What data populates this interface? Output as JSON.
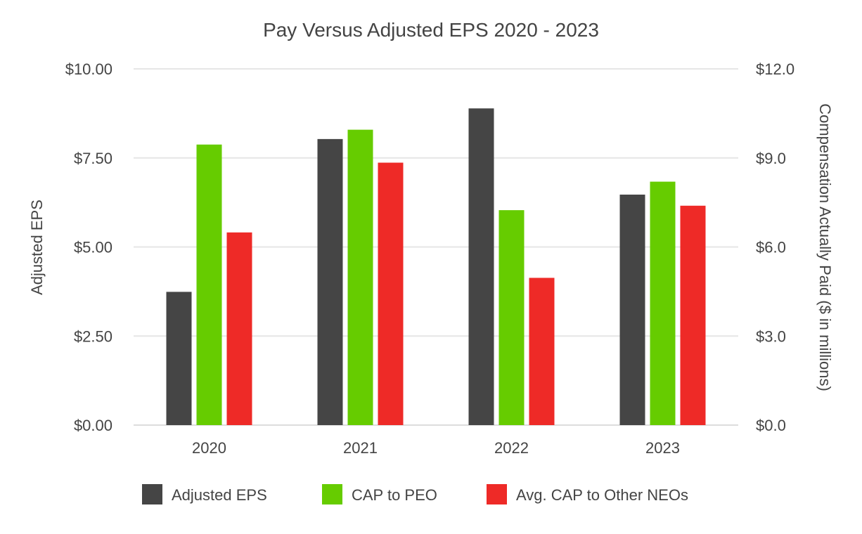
{
  "chart_data": {
    "type": "bar",
    "title": "Pay Versus Adjusted EPS 2020 - 2023",
    "categories": [
      "2020",
      "2021",
      "2022",
      "2023"
    ],
    "ylabel": "Adjusted EPS",
    "y2label": "Compensation Actually Paid ($ in millions)",
    "ylim": [
      0,
      10
    ],
    "y2lim": [
      0,
      12
    ],
    "yticks": [
      "$0.00",
      "$2.50",
      "$5.00",
      "$7.50",
      "$10.00"
    ],
    "y2ticks": [
      "$0.0",
      "$3.0",
      "$6.0",
      "$9.0",
      "$12.0"
    ],
    "legend_position": "bottom",
    "series": [
      {
        "name": "Adjusted EPS",
        "axis": "left",
        "color": "#454545",
        "values": [
          3.74,
          8.03,
          8.89,
          6.47
        ]
      },
      {
        "name": "CAP to PEO",
        "axis": "right",
        "color": "#66cc00",
        "values": [
          9.45,
          9.95,
          7.24,
          8.2
        ]
      },
      {
        "name": "Avg. CAP to Other NEOs",
        "axis": "right",
        "color": "#ee2a27",
        "values": [
          6.49,
          8.84,
          4.96,
          7.39
        ]
      }
    ]
  }
}
